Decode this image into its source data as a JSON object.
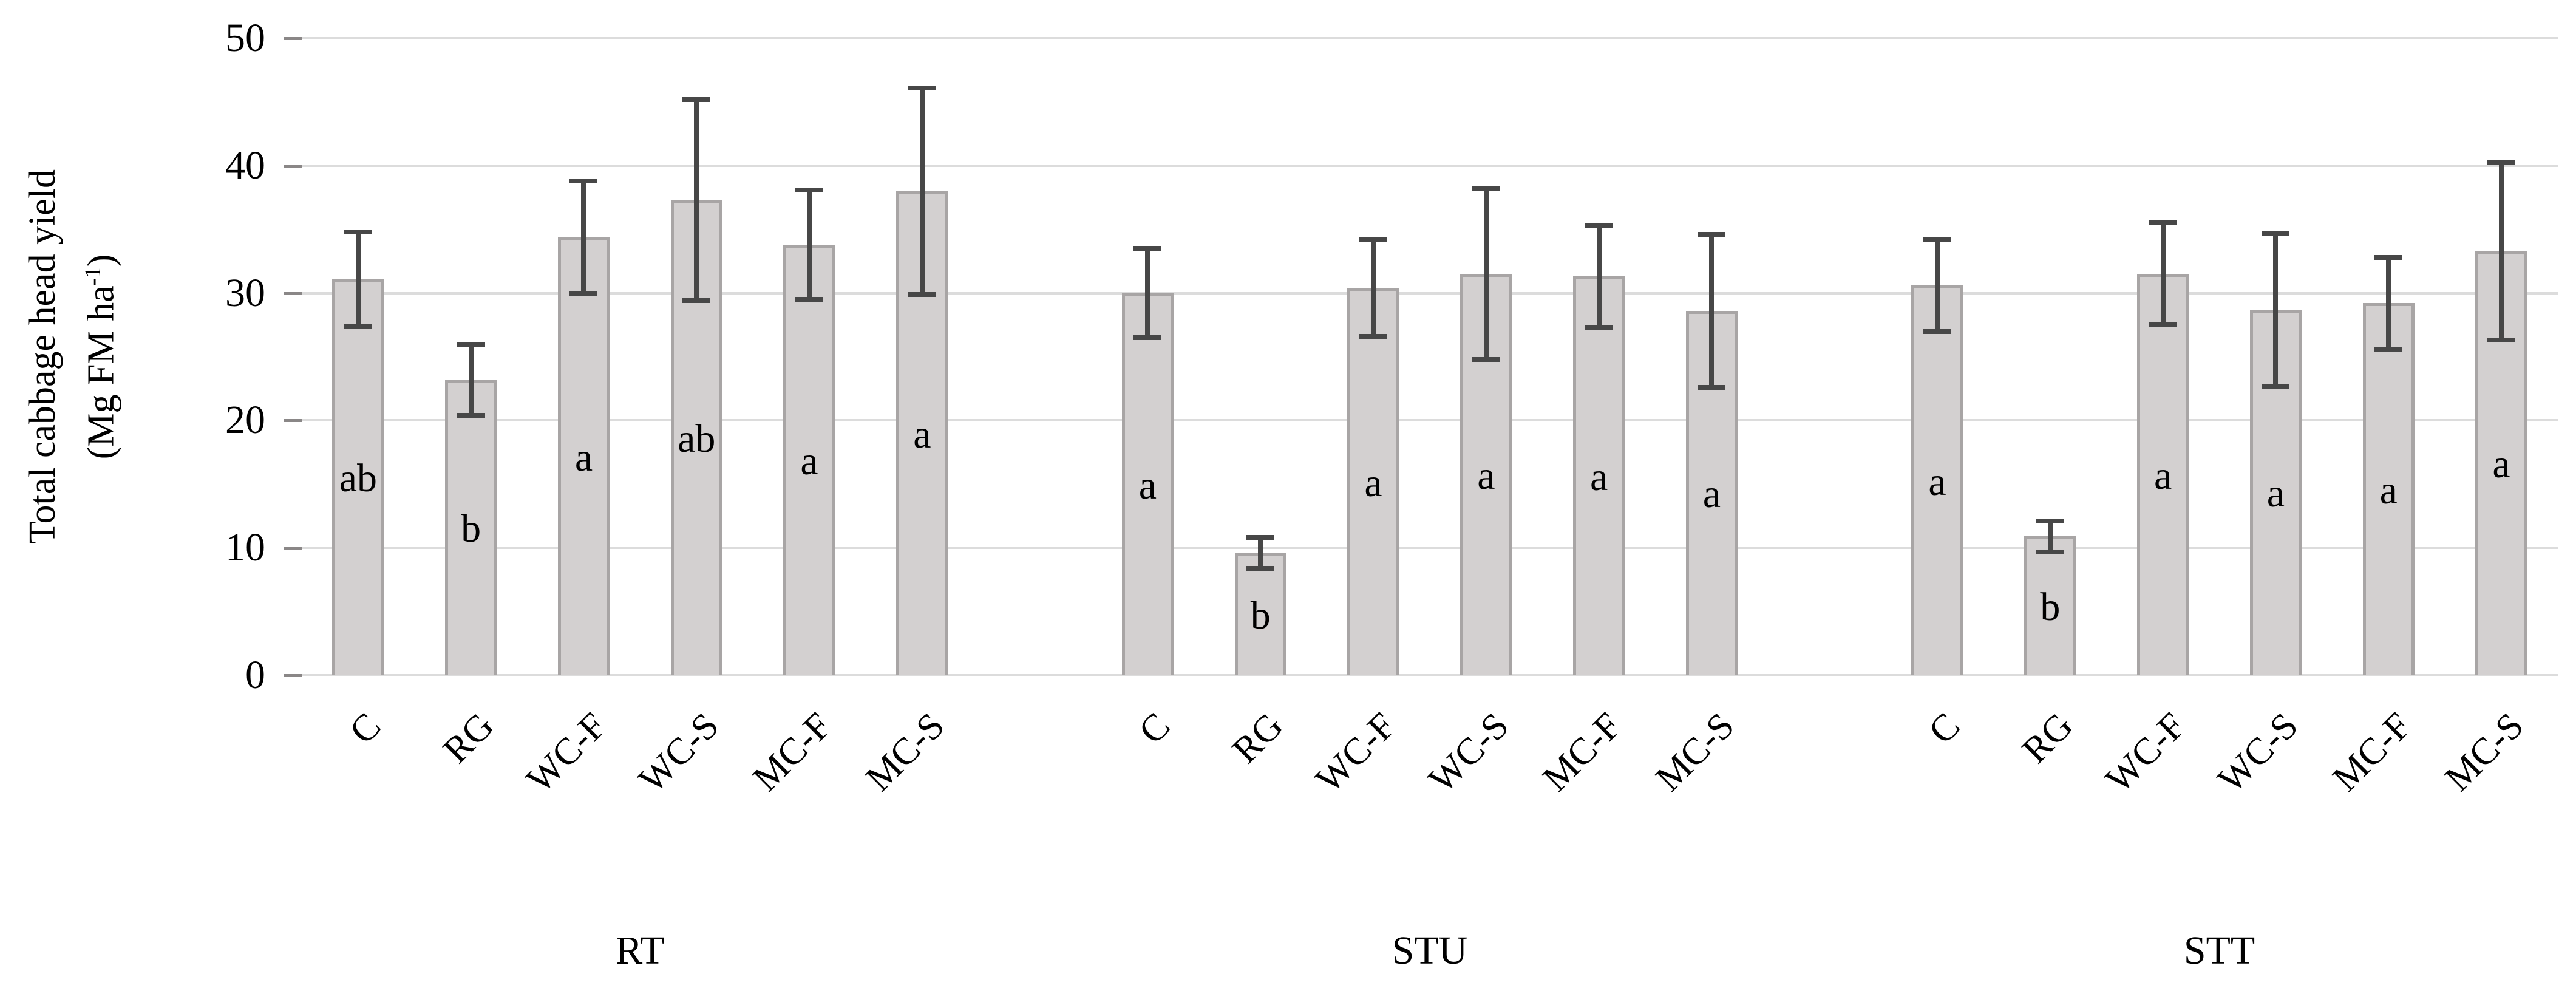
{
  "y_axis": {
    "title_line1": "Total cabbage head yield",
    "unit_prefix": "(Mg FM ha",
    "unit_sup": "-1",
    "unit_suffix": ")"
  },
  "chart_data": {
    "type": "bar",
    "title": "",
    "xlabel": "",
    "ylabel": "Total cabbage head yield (Mg FM ha-1)",
    "ylim": [
      0,
      50
    ],
    "y_ticks": [
      0,
      10,
      20,
      30,
      40,
      50
    ],
    "grid": true,
    "legend": "none",
    "bar_color": "#d3d0d0",
    "bar_border_color": "#a8a5a5",
    "error_bar_color": "#474747",
    "gridline_color": "#dcdcdc",
    "categories": [
      "C",
      "RG",
      "WC-F",
      "WC-S",
      "MC-F",
      "MC-S"
    ],
    "groups": [
      {
        "label": "RT",
        "bars": [
          {
            "category": "C",
            "value": 31.1,
            "error": 3.7,
            "letter": "ab"
          },
          {
            "category": "RG",
            "value": 23.2,
            "error": 2.8,
            "letter": "b"
          },
          {
            "category": "WC-F",
            "value": 34.4,
            "error": 4.4,
            "letter": "a"
          },
          {
            "category": "WC-S",
            "value": 37.3,
            "error": 7.9,
            "letter": "ab"
          },
          {
            "category": "MC-F",
            "value": 33.8,
            "error": 4.3,
            "letter": "a"
          },
          {
            "category": "MC-S",
            "value": 38.0,
            "error": 8.1,
            "letter": "a"
          }
        ]
      },
      {
        "label": "STU",
        "bars": [
          {
            "category": "C",
            "value": 30.0,
            "error": 3.5,
            "letter": "a"
          },
          {
            "category": "RG",
            "value": 9.6,
            "error": 1.2,
            "letter": "b"
          },
          {
            "category": "WC-F",
            "value": 30.4,
            "error": 3.8,
            "letter": "a"
          },
          {
            "category": "WC-S",
            "value": 31.5,
            "error": 6.7,
            "letter": "a"
          },
          {
            "category": "MC-F",
            "value": 31.3,
            "error": 4.0,
            "letter": "a"
          },
          {
            "category": "MC-S",
            "value": 28.6,
            "error": 6.0,
            "letter": "a"
          }
        ]
      },
      {
        "label": "STT",
        "bars": [
          {
            "category": "C",
            "value": 30.6,
            "error": 3.6,
            "letter": "a"
          },
          {
            "category": "RG",
            "value": 10.9,
            "error": 1.2,
            "letter": "b"
          },
          {
            "category": "WC-F",
            "value": 31.5,
            "error": 4.0,
            "letter": "a"
          },
          {
            "category": "WC-S",
            "value": 28.7,
            "error": 6.0,
            "letter": "a"
          },
          {
            "category": "MC-F",
            "value": 29.2,
            "error": 3.6,
            "letter": "a"
          },
          {
            "category": "MC-S",
            "value": 33.3,
            "error": 7.0,
            "letter": "a"
          }
        ]
      }
    ]
  }
}
